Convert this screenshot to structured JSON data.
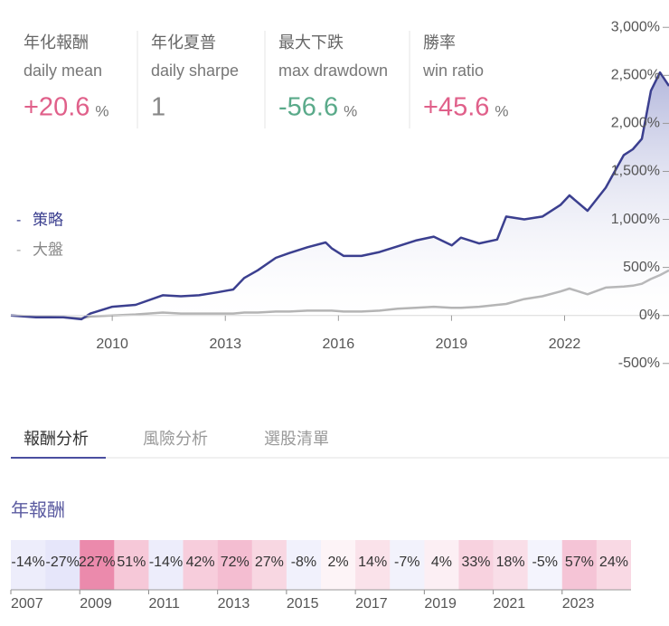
{
  "stats": [
    {
      "title": "年化報酬",
      "subtitle": "daily mean",
      "value": "+20.6",
      "unit": "%",
      "color": "#e0608a"
    },
    {
      "title": "年化夏普",
      "subtitle": "daily sharpe",
      "value": "1",
      "color": "#888888"
    },
    {
      "title": "最大下跌",
      "subtitle": "max drawdown",
      "value": "-56.6",
      "unit": "%",
      "color": "#5aaa8a"
    },
    {
      "title": "勝率",
      "subtitle": "win ratio",
      "value": "+45.6",
      "unit": "%",
      "color": "#e0608a"
    }
  ],
  "chart_data": {
    "type": "line",
    "x": [
      2007.31,
      2007.98,
      2008.7,
      2009.18,
      2009.42,
      2010.0,
      2010.62,
      2011.34,
      2011.82,
      2012.3,
      2012.78,
      2013.21,
      2013.5,
      2013.86,
      2014.34,
      2014.7,
      2015.18,
      2015.66,
      2015.82,
      2016.14,
      2016.61,
      2017.09,
      2017.57,
      2018.05,
      2018.53,
      2019.01,
      2019.25,
      2019.73,
      2020.21,
      2020.45,
      2020.93,
      2021.41,
      2021.89,
      2022.13,
      2022.61,
      2023.09,
      2023.57,
      2023.81,
      2024.05,
      2024.29,
      2024.53,
      2024.77
    ],
    "series": [
      {
        "name": "策略",
        "color": "#3b3f8f",
        "values": [
          0,
          -20,
          -20,
          -40,
          20,
          90,
          110,
          210,
          200,
          210,
          240,
          270,
          390,
          470,
          600,
          650,
          710,
          760,
          700,
          620,
          620,
          660,
          720,
          780,
          820,
          730,
          810,
          750,
          790,
          1030,
          1000,
          1030,
          1150,
          1250,
          1090,
          1330,
          1670,
          1730,
          1840,
          2340,
          2530,
          2390
        ]
      },
      {
        "name": "大盤",
        "color": "#aaaaaa",
        "values": [
          0,
          -10,
          -20,
          -30,
          -10,
          0,
          10,
          30,
          20,
          20,
          20,
          20,
          30,
          30,
          40,
          40,
          50,
          50,
          50,
          40,
          40,
          50,
          70,
          80,
          90,
          80,
          80,
          90,
          110,
          120,
          170,
          200,
          250,
          280,
          220,
          290,
          300,
          310,
          330,
          380,
          420,
          470
        ]
      }
    ],
    "xlim": [
      2007.31,
      2024.77
    ],
    "xticks": [
      2010,
      2013,
      2016,
      2019,
      2022
    ],
    "ylim": [
      -700,
      3200
    ],
    "yticks": [
      {
        "value": 3000,
        "label": "3,000%"
      },
      {
        "value": 2500,
        "label": "2,500%"
      },
      {
        "value": 2000,
        "label": "2,000%"
      },
      {
        "value": 1500,
        "label": "1,500%"
      },
      {
        "value": 1000,
        "label": "1,000%"
      },
      {
        "value": 500,
        "label": "500%"
      },
      {
        "value": 0,
        "label": "0%"
      },
      {
        "value": -500,
        "label": "-500%"
      }
    ],
    "legend": "left",
    "grid": false,
    "area_fill": true
  },
  "tabs": [
    {
      "label": "報酬分析",
      "active": true
    },
    {
      "label": "風險分析",
      "active": false
    },
    {
      "label": "選股清單",
      "active": false
    }
  ],
  "annual": {
    "type": "heatmap",
    "title": "年報酬",
    "categories": [
      "2007",
      null,
      "2009",
      null,
      "2011",
      null,
      "2013",
      null,
      "2015",
      null,
      "2017",
      null,
      "2019",
      null,
      "2021",
      null,
      "2023",
      null
    ],
    "values": [
      -14,
      -27,
      227,
      51,
      -14,
      42,
      72,
      27,
      -8,
      2,
      14,
      -7,
      4,
      33,
      18,
      -5,
      57,
      24
    ],
    "value_labels": [
      "-14%",
      "-27%",
      "227%",
      "51%",
      "-14%",
      "42%",
      "72%",
      "27%",
      "-8%",
      "2%",
      "14%",
      "-7%",
      "4%",
      "33%",
      "18%",
      "-5%",
      "57%",
      "24%"
    ],
    "positive_color": "#e8769e",
    "negative_color": "#b8b8f0"
  }
}
